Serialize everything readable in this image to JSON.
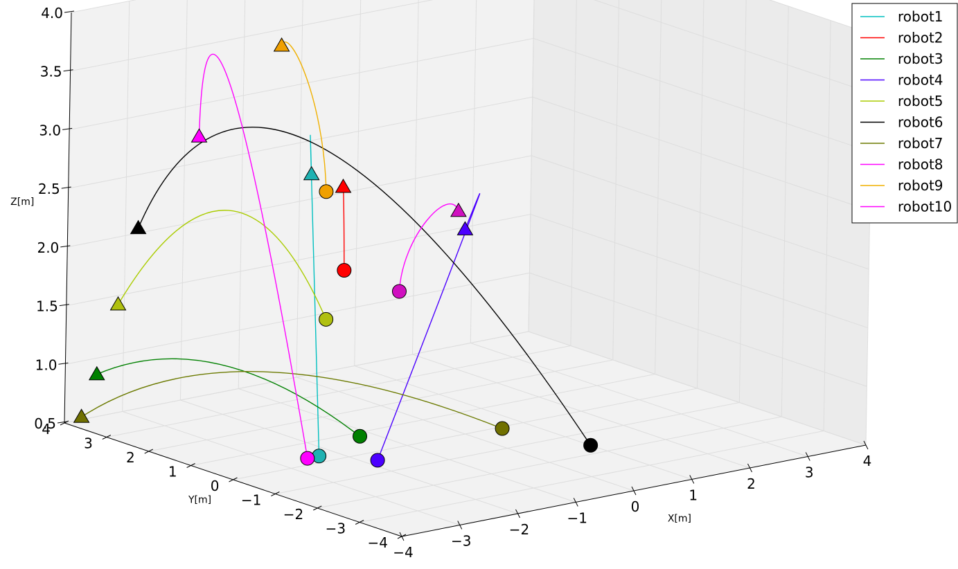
{
  "chart_data": {
    "type": "line",
    "projection": "3d",
    "xlabel": "X[m]",
    "ylabel": "Y[m]",
    "zlabel": "Z[m]",
    "xlim": [
      -4,
      4
    ],
    "ylim": [
      -4,
      4
    ],
    "zlim": [
      0.5,
      4.0
    ],
    "x_ticks": [
      "−4",
      "−3",
      "−2",
      "−1",
      "0",
      "1",
      "2",
      "3",
      "4"
    ],
    "y_ticks": [
      "−4",
      "−3",
      "−2",
      "−1",
      "0",
      "1",
      "2",
      "3",
      "4"
    ],
    "z_ticks": [
      "0.5",
      "1.0",
      "1.5",
      "2.0",
      "2.5",
      "3.0",
      "3.5",
      "4.0"
    ],
    "grid": true,
    "legend_position": "top-right",
    "start_marker": "triangle",
    "end_marker": "circle",
    "series": [
      {
        "name": "robot1",
        "color": "#00bfbf",
        "marker_color": "#20b2b2",
        "start": [
          -0.9,
          2.5,
          2.5
        ],
        "end": [
          -2.3,
          0.3,
          0.5
        ],
        "apex": [
          -1.2,
          2.1,
          2.62
        ]
      },
      {
        "name": "robot2",
        "color": "#ff0000",
        "marker_color": "#ff0000",
        "start": [
          -0.2,
          2.7,
          2.3
        ],
        "end": [
          -0.6,
          2.1,
          1.7
        ]
      },
      {
        "name": "robot3",
        "color": "#008000",
        "marker_color": "#008000",
        "start": [
          -3.6,
          3.8,
          0.9
        ],
        "end": [
          -1.6,
          0.3,
          0.6
        ],
        "apex": [
          -2.7,
          2.1,
          1.1
        ]
      },
      {
        "name": "robot4",
        "color": "#4b00ff",
        "marker_color": "#4b00ff",
        "start": [
          2.8,
          3.9,
          1.5
        ],
        "end": [
          -1.8,
          -0.4,
          0.5
        ],
        "apex": [
          2.0,
          2.7,
          1.8
        ]
      },
      {
        "name": "robot5",
        "color": "#aacc00",
        "marker_color": "#b0c010",
        "start": [
          -3.4,
          3.6,
          1.5
        ],
        "end": [
          -2.0,
          0.6,
          1.6
        ],
        "apex": [
          -2.4,
          2.4,
          2.35
        ]
      },
      {
        "name": "robot6",
        "color": "#000000",
        "marker_color": "#000000",
        "start": [
          -3.0,
          3.7,
          2.1
        ],
        "end": [
          1.0,
          -1.6,
          0.5
        ],
        "apex": [
          -1.2,
          2.1,
          2.85
        ]
      },
      {
        "name": "robot7",
        "color": "#6b7a00",
        "marker_color": "#707000",
        "start": [
          -4.0,
          3.6,
          0.6
        ],
        "end": [
          0.2,
          -0.6,
          0.6
        ],
        "apex": [
          -2.3,
          1.7,
          1.05
        ]
      },
      {
        "name": "robot8",
        "color": "#ff00ff",
        "marker_color": "#d010c0",
        "start": [
          1.8,
          2.7,
          1.9
        ],
        "end": [
          -0.3,
          1.2,
          1.6
        ]
      },
      {
        "name": "robot9",
        "color": "#f0b000",
        "marker_color": "#f0a000",
        "start": [
          -0.5,
          3.8,
          3.4
        ],
        "end": [
          -1.3,
          1.6,
          2.5
        ]
      },
      {
        "name": "robot10",
        "color": "#ff00ff",
        "marker_color": "#ff00ff",
        "start": [
          -3.0,
          2.3,
          3.05
        ],
        "end": [
          -2.5,
          0.3,
          0.5
        ],
        "apex": [
          -2.7,
          2.0,
          3.5
        ]
      }
    ]
  }
}
